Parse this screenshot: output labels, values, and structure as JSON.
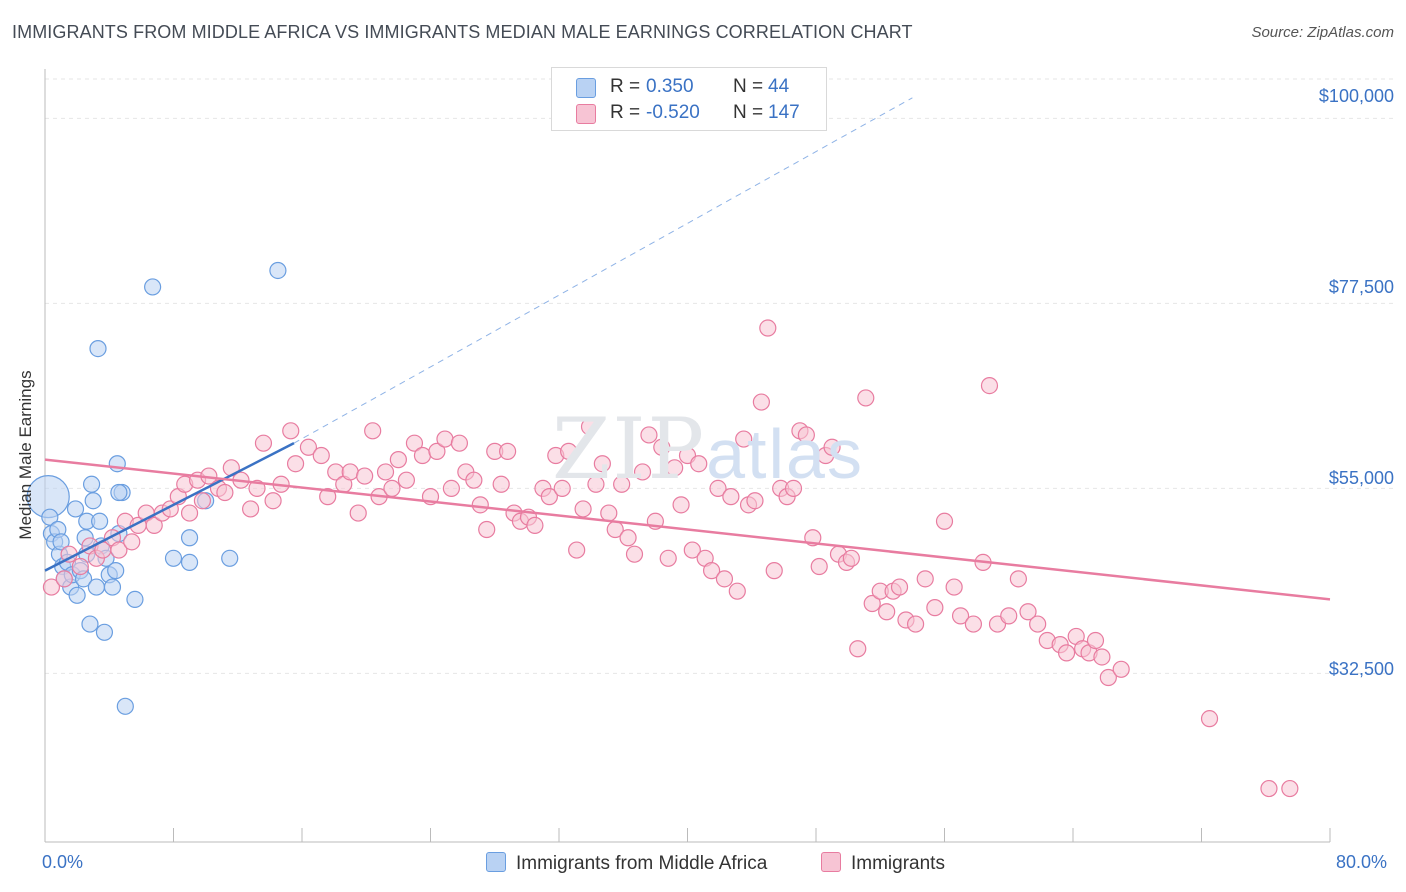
{
  "title": "IMMIGRANTS FROM MIDDLE AFRICA VS IMMIGRANTS MEDIAN MALE EARNINGS CORRELATION CHART",
  "source": "Source: ZipAtlas.com",
  "watermark": {
    "zip": "ZIP",
    "atlas": "atlas"
  },
  "legend_top": [
    {
      "r_label": "R =",
      "r_value": "0.350",
      "n_label": "N =",
      "n_value": "44"
    },
    {
      "r_label": "R =",
      "r_value": "-0.520",
      "n_label": "N =",
      "n_value": "147"
    }
  ],
  "legend_bottom": [
    "Immigrants from Middle Africa",
    "Immigrants"
  ],
  "colors": {
    "blue": "#6a9ee0",
    "blue_fill": "#b9d2f3",
    "pink": "#e87ca0",
    "pink_fill": "#f7c4d4",
    "tick_text": "#3a72c4",
    "grid": "#e6e6e6"
  },
  "chart_data": {
    "type": "scatter",
    "xlabel": "",
    "ylabel": "Median Male Earnings",
    "xlim": [
      0,
      80
    ],
    "ylim": [
      12000,
      106000
    ],
    "x_tick_labels": [
      "0.0%",
      "80.0%"
    ],
    "y_tick_labels": [
      "$100,000",
      "$77,500",
      "$55,000",
      "$32,500"
    ],
    "y_tick_values": [
      100000,
      77500,
      55000,
      32500
    ],
    "grid": "horizontal dashed",
    "series": [
      {
        "name": "Immigrants from Middle Africa",
        "color": "#6a9ee0",
        "points": [
          [
            0.2,
            54000
          ],
          [
            0.3,
            51500
          ],
          [
            0.4,
            49500
          ],
          [
            0.6,
            48500
          ],
          [
            0.8,
            50000
          ],
          [
            0.9,
            47000
          ],
          [
            1.0,
            48500
          ],
          [
            1.1,
            45500
          ],
          [
            1.2,
            44000
          ],
          [
            1.4,
            46000
          ],
          [
            1.6,
            43000
          ],
          [
            1.7,
            44500
          ],
          [
            1.9,
            52500
          ],
          [
            2.0,
            42000
          ],
          [
            2.2,
            45000
          ],
          [
            2.4,
            44000
          ],
          [
            2.5,
            49000
          ],
          [
            2.6,
            51000
          ],
          [
            2.8,
            38500
          ],
          [
            2.9,
            55500
          ],
          [
            3.0,
            53500
          ],
          [
            3.2,
            43000
          ],
          [
            3.4,
            51000
          ],
          [
            3.5,
            48000
          ],
          [
            3.7,
            37500
          ],
          [
            3.8,
            46500
          ],
          [
            4.0,
            44500
          ],
          [
            4.2,
            43000
          ],
          [
            4.4,
            45000
          ],
          [
            4.5,
            58000
          ],
          [
            4.6,
            49500
          ],
          [
            4.8,
            54500
          ],
          [
            5.0,
            28500
          ],
          [
            5.6,
            41500
          ],
          [
            6.7,
            79500
          ],
          [
            8.0,
            46500
          ],
          [
            9.0,
            49000
          ],
          [
            9.0,
            46000
          ],
          [
            10.0,
            53500
          ],
          [
            11.5,
            46500
          ],
          [
            14.5,
            81500
          ],
          [
            3.3,
            72000
          ],
          [
            4.6,
            54500
          ],
          [
            2.6,
            47000
          ]
        ]
      },
      {
        "name": "Immigrants",
        "color": "#e87ca0",
        "points": [
          [
            0.4,
            43000
          ],
          [
            1.2,
            44000
          ],
          [
            1.5,
            47000
          ],
          [
            2.2,
            45500
          ],
          [
            2.8,
            48000
          ],
          [
            3.2,
            46500
          ],
          [
            3.6,
            47500
          ],
          [
            4.2,
            49000
          ],
          [
            4.6,
            47500
          ],
          [
            5.0,
            51000
          ],
          [
            5.4,
            48500
          ],
          [
            5.8,
            50500
          ],
          [
            6.3,
            52000
          ],
          [
            6.8,
            50500
          ],
          [
            7.3,
            52000
          ],
          [
            7.8,
            52500
          ],
          [
            8.3,
            54000
          ],
          [
            8.7,
            55500
          ],
          [
            9.0,
            52000
          ],
          [
            9.5,
            56000
          ],
          [
            9.8,
            53500
          ],
          [
            10.2,
            56500
          ],
          [
            10.8,
            55000
          ],
          [
            11.2,
            54500
          ],
          [
            11.6,
            57500
          ],
          [
            12.2,
            56000
          ],
          [
            12.8,
            52500
          ],
          [
            13.2,
            55000
          ],
          [
            13.6,
            60500
          ],
          [
            14.2,
            53500
          ],
          [
            14.7,
            55500
          ],
          [
            15.3,
            62000
          ],
          [
            15.6,
            58000
          ],
          [
            16.4,
            60000
          ],
          [
            17.2,
            59000
          ],
          [
            17.6,
            54000
          ],
          [
            18.1,
            57000
          ],
          [
            18.6,
            55500
          ],
          [
            19.0,
            57000
          ],
          [
            19.5,
            52000
          ],
          [
            19.9,
            56500
          ],
          [
            20.4,
            62000
          ],
          [
            20.8,
            54000
          ],
          [
            21.2,
            57000
          ],
          [
            21.6,
            55000
          ],
          [
            22.0,
            58500
          ],
          [
            22.5,
            56000
          ],
          [
            23.0,
            60500
          ],
          [
            23.5,
            59000
          ],
          [
            24.0,
            54000
          ],
          [
            24.4,
            59500
          ],
          [
            24.9,
            61000
          ],
          [
            25.3,
            55000
          ],
          [
            25.8,
            60500
          ],
          [
            26.2,
            57000
          ],
          [
            26.7,
            56000
          ],
          [
            27.1,
            53000
          ],
          [
            27.5,
            50000
          ],
          [
            28.0,
            59500
          ],
          [
            28.4,
            55500
          ],
          [
            28.8,
            59500
          ],
          [
            29.2,
            52000
          ],
          [
            29.6,
            51000
          ],
          [
            30.1,
            51500
          ],
          [
            30.5,
            50500
          ],
          [
            31.0,
            55000
          ],
          [
            31.4,
            54000
          ],
          [
            31.8,
            59000
          ],
          [
            32.2,
            55000
          ],
          [
            32.6,
            59500
          ],
          [
            33.1,
            47500
          ],
          [
            33.5,
            52500
          ],
          [
            33.9,
            62500
          ],
          [
            34.3,
            55500
          ],
          [
            34.7,
            58000
          ],
          [
            35.1,
            52000
          ],
          [
            35.5,
            50000
          ],
          [
            35.9,
            55500
          ],
          [
            36.3,
            49000
          ],
          [
            36.7,
            47000
          ],
          [
            37.2,
            57000
          ],
          [
            37.6,
            61500
          ],
          [
            38.0,
            51000
          ],
          [
            38.4,
            60000
          ],
          [
            38.8,
            46500
          ],
          [
            39.2,
            57500
          ],
          [
            39.6,
            53000
          ],
          [
            40.0,
            59000
          ],
          [
            40.3,
            47500
          ],
          [
            40.7,
            58000
          ],
          [
            41.1,
            46500
          ],
          [
            41.5,
            45000
          ],
          [
            41.9,
            55000
          ],
          [
            42.3,
            44000
          ],
          [
            42.7,
            54000
          ],
          [
            43.1,
            42500
          ],
          [
            43.5,
            61000
          ],
          [
            43.8,
            53000
          ],
          [
            44.2,
            53500
          ],
          [
            44.6,
            65500
          ],
          [
            45.0,
            74500
          ],
          [
            45.4,
            45000
          ],
          [
            45.8,
            55000
          ],
          [
            46.2,
            54000
          ],
          [
            46.6,
            55000
          ],
          [
            47.0,
            62000
          ],
          [
            47.4,
            61500
          ],
          [
            47.8,
            49000
          ],
          [
            48.2,
            45500
          ],
          [
            48.6,
            59000
          ],
          [
            49.0,
            60000
          ],
          [
            49.4,
            47000
          ],
          [
            49.9,
            46000
          ],
          [
            50.2,
            46500
          ],
          [
            50.6,
            35500
          ],
          [
            51.1,
            66000
          ],
          [
            51.5,
            41000
          ],
          [
            52.0,
            42500
          ],
          [
            52.4,
            40000
          ],
          [
            52.8,
            42500
          ],
          [
            53.2,
            43000
          ],
          [
            53.6,
            39000
          ],
          [
            54.2,
            38500
          ],
          [
            54.8,
            44000
          ],
          [
            55.4,
            40500
          ],
          [
            56.0,
            51000
          ],
          [
            56.6,
            43000
          ],
          [
            57.0,
            39500
          ],
          [
            57.8,
            38500
          ],
          [
            58.4,
            46000
          ],
          [
            58.8,
            67500
          ],
          [
            59.3,
            38500
          ],
          [
            60.0,
            39500
          ],
          [
            60.6,
            44000
          ],
          [
            61.2,
            40000
          ],
          [
            61.8,
            38500
          ],
          [
            62.4,
            36500
          ],
          [
            63.2,
            36000
          ],
          [
            63.6,
            35000
          ],
          [
            64.2,
            37000
          ],
          [
            64.6,
            35500
          ],
          [
            65.0,
            35000
          ],
          [
            65.4,
            36500
          ],
          [
            65.8,
            34500
          ],
          [
            66.2,
            32000
          ],
          [
            67.0,
            33000
          ],
          [
            72.5,
            27000
          ],
          [
            76.2,
            18500
          ],
          [
            77.5,
            18500
          ]
        ]
      }
    ],
    "trendlines": [
      {
        "series": "Immigrants from Middle Africa",
        "x": [
          0,
          15.5
        ],
        "y": [
          45000,
          60500
        ],
        "style": "solid"
      },
      {
        "series": "Immigrants from Middle Africa",
        "x": [
          15.5,
          54
        ],
        "y": [
          60500,
          102500
        ],
        "style": "dashed"
      },
      {
        "series": "Immigrants",
        "x": [
          0,
          80
        ],
        "y": [
          58500,
          41500
        ],
        "style": "solid"
      }
    ]
  }
}
